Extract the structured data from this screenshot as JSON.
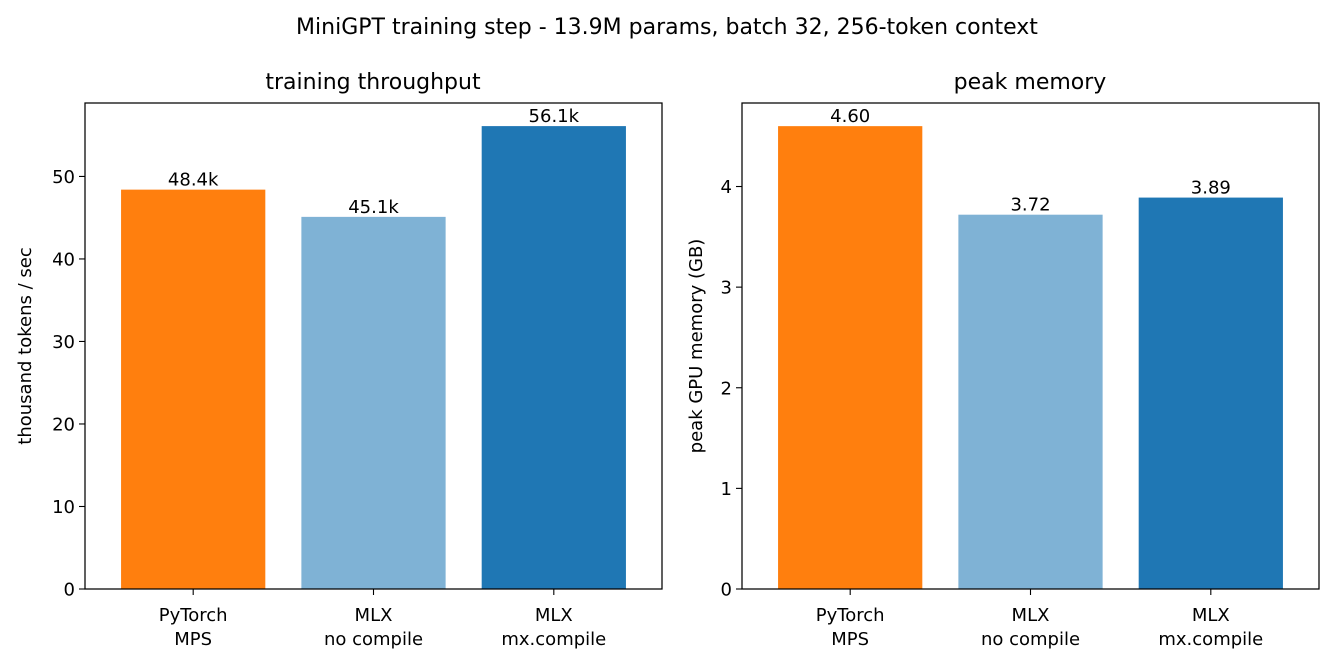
{
  "figure_title": "MiniGPT training step - 13.9M params, batch 32, 256-token context",
  "chart_data": [
    {
      "type": "bar",
      "title": "training throughput",
      "xlabel": "",
      "ylabel": "thousand tokens / sec",
      "categories": [
        "PyTorch\nMPS",
        "MLX\nno compile",
        "MLX\nmx.compile"
      ],
      "values": [
        48.4,
        45.1,
        56.1
      ],
      "data_labels": [
        "48.4k",
        "45.1k",
        "56.1k"
      ],
      "colors": [
        "#ff7f0e",
        "#7fb2d5",
        "#1f77b4"
      ],
      "ylim": [
        0,
        58.9
      ],
      "yticks": [
        0,
        10,
        20,
        30,
        40,
        50
      ],
      "grid": false,
      "legend": "none"
    },
    {
      "type": "bar",
      "title": "peak memory",
      "xlabel": "",
      "ylabel": "peak GPU memory (GB)",
      "categories": [
        "PyTorch\nMPS",
        "MLX\nno compile",
        "MLX\nmx.compile"
      ],
      "values": [
        4.6,
        3.72,
        3.89
      ],
      "data_labels": [
        "4.60",
        "3.72",
        "3.89"
      ],
      "colors": [
        "#ff7f0e",
        "#7fb2d5",
        "#1f77b4"
      ],
      "ylim": [
        0,
        4.83
      ],
      "yticks": [
        0,
        1,
        2,
        3,
        4
      ],
      "grid": false,
      "legend": "none"
    }
  ]
}
